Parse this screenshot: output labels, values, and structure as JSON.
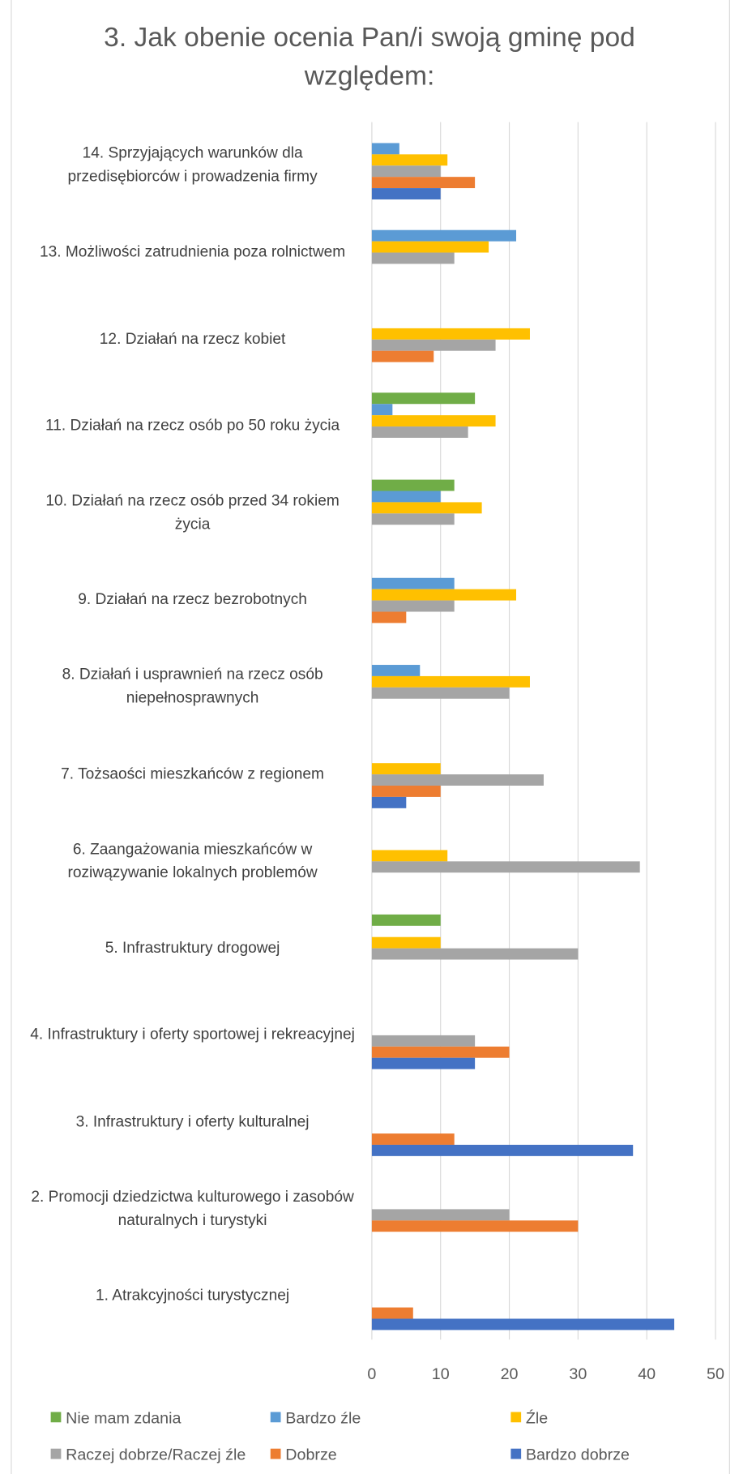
{
  "chart_data": {
    "type": "bar",
    "orientation": "horizontal",
    "title": "3. Jak obenie ocenia Pan/i swoją gminę pod względem:",
    "categories": [
      "1. Atrakcyjności turystycznej",
      "2. Promocji dziedzictwa kulturowego i zasobów naturalnych i turystyki",
      "3. Infrastruktury i oferty kulturalnej",
      "4. Infrastruktury i oferty sportowej i rekreacyjnej",
      "5. Infrastruktury drogowej",
      "6. Zaangażowania mieszkańców w roziwązywanie lokalnych problemów",
      "7. Tożsaości mieszkańców z regionem",
      "8. Działań i usprawnień na rzecz osób niepełnosprawnych",
      "9. Działań na rzecz bezrobotnych",
      "10. Działań na rzecz osób przed 34 rokiem życia",
      "11. Działań na rzecz osób po 50 roku życia",
      "12. Działań na rzecz kobiet",
      "13. Możliwości zatrudnienia poza rolnictwem",
      "14. Sprzyjających warunków dla przedisębiorców i prowadzenia firmy"
    ],
    "series": [
      {
        "name": "Nie mam zdania",
        "color": "#70ad47",
        "values": [
          0,
          0,
          0,
          0,
          10,
          0,
          0,
          0,
          0,
          12,
          15,
          0,
          0,
          0
        ]
      },
      {
        "name": "Bardzo źle",
        "color": "#5b9bd5",
        "values": [
          0,
          0,
          0,
          0,
          0,
          0,
          0,
          7,
          12,
          10,
          3,
          0,
          21,
          4
        ]
      },
      {
        "name": "Źle",
        "color": "#ffc000",
        "values": [
          0,
          0,
          0,
          0,
          10,
          11,
          10,
          23,
          21,
          16,
          18,
          23,
          17,
          11
        ]
      },
      {
        "name": "Raczej dobrze/Raczej źle",
        "color": "#a5a5a5",
        "values": [
          0,
          20,
          0,
          15,
          30,
          39,
          25,
          20,
          12,
          12,
          14,
          18,
          12,
          10
        ]
      },
      {
        "name": "Dobrze",
        "color": "#ed7d31",
        "values": [
          6,
          30,
          12,
          20,
          0,
          0,
          10,
          0,
          5,
          0,
          0,
          9,
          0,
          15
        ]
      },
      {
        "name": "Bardzo dobrze",
        "color": "#4472c4",
        "values": [
          44,
          0,
          38,
          15,
          0,
          0,
          5,
          0,
          0,
          0,
          0,
          0,
          0,
          10
        ]
      }
    ],
    "xlim": [
      0,
      50
    ],
    "xticks": [
      0,
      10,
      20,
      30,
      40,
      50
    ],
    "grid": true,
    "legend": "bottom"
  }
}
